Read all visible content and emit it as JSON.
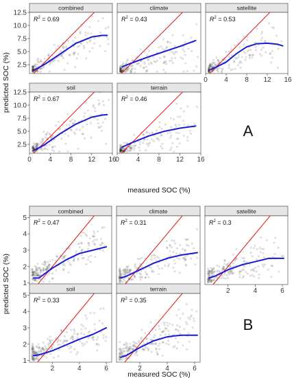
{
  "figures": [
    {
      "label": "A",
      "xlabel": "measured SOC (%)",
      "ylabel": "predicted SOC (%)",
      "xlim": [
        0,
        16
      ],
      "ylim": [
        0.8,
        12.5
      ],
      "xticks": [
        {
          "v": 0,
          "t": "0"
        },
        {
          "v": 4,
          "t": "4"
        },
        {
          "v": 8,
          "t": "8"
        },
        {
          "v": 12,
          "t": "12"
        },
        {
          "v": 16,
          "t": "16"
        }
      ],
      "yticks": [
        {
          "v": 2.5,
          "t": "2.5"
        },
        {
          "v": 5,
          "t": "5.0"
        },
        {
          "v": 7.5,
          "t": "7.5"
        },
        {
          "v": 10,
          "t": "10.0"
        },
        {
          "v": 12.5,
          "t": "12.5"
        }
      ]
    },
    {
      "label": "B",
      "xlabel": "measured SOC (%)",
      "ylabel": "predicted SOC (%)",
      "xlim": [
        0.3,
        6.4
      ],
      "ylim": [
        0.9,
        5.1
      ],
      "xticks": [
        {
          "v": 2,
          "t": "2"
        },
        {
          "v": 4,
          "t": "4"
        },
        {
          "v": 6,
          "t": "6"
        }
      ],
      "yticks": [
        {
          "v": 1,
          "t": "1"
        },
        {
          "v": 2,
          "t": "2"
        },
        {
          "v": 3,
          "t": "3"
        },
        {
          "v": 4,
          "t": "4"
        },
        {
          "v": 5,
          "t": "5"
        }
      ]
    }
  ],
  "chart_data": [
    {
      "type": "scatter",
      "figure": "A",
      "panels": [
        {
          "name": "combined",
          "r2": "0.69",
          "fit": [
            [
              1,
              1.5
            ],
            [
              3,
              2.6
            ],
            [
              6,
              4.6
            ],
            [
              9,
              6.6
            ],
            [
              12,
              7.8
            ],
            [
              14,
              8.1
            ],
            [
              15,
              8.1
            ]
          ],
          "cloud": {
            "n": 170,
            "seed": 11,
            "mode": "A",
            "slope": 0.52,
            "xmax": 15.5
          }
        },
        {
          "name": "climate",
          "r2": "0.43",
          "fit": [
            [
              1,
              2.1
            ],
            [
              3,
              2.9
            ],
            [
              6,
              4.0
            ],
            [
              9,
              5.0
            ],
            [
              12,
              6.0
            ],
            [
              15,
              7.1
            ]
          ],
          "cloud": {
            "n": 170,
            "seed": 23,
            "mode": "A",
            "slope": 0.35,
            "xmax": 15.5
          }
        },
        {
          "name": "satellite",
          "r2": "0.53",
          "fit": [
            [
              1,
              1.6
            ],
            [
              2,
              2.0
            ],
            [
              4,
              3.0
            ],
            [
              6,
              4.6
            ],
            [
              8,
              5.9
            ],
            [
              10,
              6.5
            ],
            [
              12,
              6.6
            ],
            [
              14,
              6.4
            ],
            [
              15,
              6.1
            ]
          ],
          "cloud": {
            "n": 170,
            "seed": 37,
            "mode": "A",
            "slope": 0.45,
            "xmax": 15
          }
        },
        {
          "name": "soil",
          "r2": "0.67",
          "fit": [
            [
              1,
              1.4
            ],
            [
              3,
              2.5
            ],
            [
              6,
              4.6
            ],
            [
              9,
              6.4
            ],
            [
              12,
              7.7
            ],
            [
              14,
              8.1
            ],
            [
              15,
              8.2
            ]
          ],
          "cloud": {
            "n": 170,
            "seed": 41,
            "mode": "A",
            "slope": 0.52,
            "xmax": 15.5
          }
        },
        {
          "name": "terrain",
          "r2": "0.46",
          "fit": [
            [
              1,
              2.0
            ],
            [
              3,
              2.9
            ],
            [
              6,
              4.1
            ],
            [
              9,
              5.0
            ],
            [
              12,
              5.6
            ],
            [
              15,
              6.0
            ]
          ],
          "cloud": {
            "n": 170,
            "seed": 53,
            "mode": "A",
            "slope": 0.36,
            "xmax": 15.5
          }
        }
      ],
      "identity_line": true
    },
    {
      "type": "scatter",
      "figure": "B",
      "panels": [
        {
          "name": "combined",
          "r2": "0.47",
          "fit": [
            [
              0.6,
              1.3
            ],
            [
              1,
              1.3
            ],
            [
              2,
              1.9
            ],
            [
              3,
              2.4
            ],
            [
              4,
              2.8
            ],
            [
              5,
              3.0
            ],
            [
              6,
              3.2
            ]
          ],
          "cloud": {
            "n": 200,
            "seed": 61,
            "mode": "B",
            "slope": 0.42,
            "xmax": 6
          }
        },
        {
          "name": "climate",
          "r2": "0.31",
          "fit": [
            [
              0.6,
              1.3
            ],
            [
              1,
              1.4
            ],
            [
              2,
              1.8
            ],
            [
              3,
              2.2
            ],
            [
              4,
              2.5
            ],
            [
              5,
              2.7
            ],
            [
              6.2,
              2.85
            ]
          ],
          "cloud": {
            "n": 200,
            "seed": 73,
            "mode": "B",
            "slope": 0.32,
            "xmax": 6.2
          }
        },
        {
          "name": "satellite",
          "r2": "0.3",
          "fit": [
            [
              0.6,
              1.3
            ],
            [
              1,
              1.4
            ],
            [
              2,
              1.8
            ],
            [
              3,
              2.1
            ],
            [
              4,
              2.3
            ],
            [
              5,
              2.5
            ],
            [
              6.1,
              2.5
            ]
          ],
          "cloud": {
            "n": 200,
            "seed": 83,
            "mode": "B",
            "slope": 0.28,
            "xmax": 6.1
          }
        },
        {
          "name": "soil",
          "r2": "0.33",
          "fit": [
            [
              0.6,
              1.3
            ],
            [
              1,
              1.35
            ],
            [
              2,
              1.6
            ],
            [
              3,
              1.95
            ],
            [
              4,
              2.3
            ],
            [
              5,
              2.6
            ],
            [
              6,
              3.0
            ]
          ],
          "cloud": {
            "n": 200,
            "seed": 97,
            "mode": "B",
            "slope": 0.3,
            "xmax": 6
          }
        },
        {
          "name": "terrain",
          "r2": "0.35",
          "fit": [
            [
              0.6,
              1.2
            ],
            [
              1,
              1.3
            ],
            [
              2,
              1.8
            ],
            [
              3,
              2.2
            ],
            [
              4,
              2.45
            ],
            [
              5,
              2.55
            ],
            [
              6.2,
              2.55
            ]
          ],
          "cloud": {
            "n": 200,
            "seed": 103,
            "mode": "B",
            "slope": 0.32,
            "xmax": 6.2
          }
        }
      ],
      "identity_line": true
    }
  ],
  "colors": {
    "fit_line": "#1a1ad6",
    "identity_line": "#e01010",
    "points": "#000000",
    "strip": "#e6e6e6",
    "panel_border": "#333333"
  }
}
